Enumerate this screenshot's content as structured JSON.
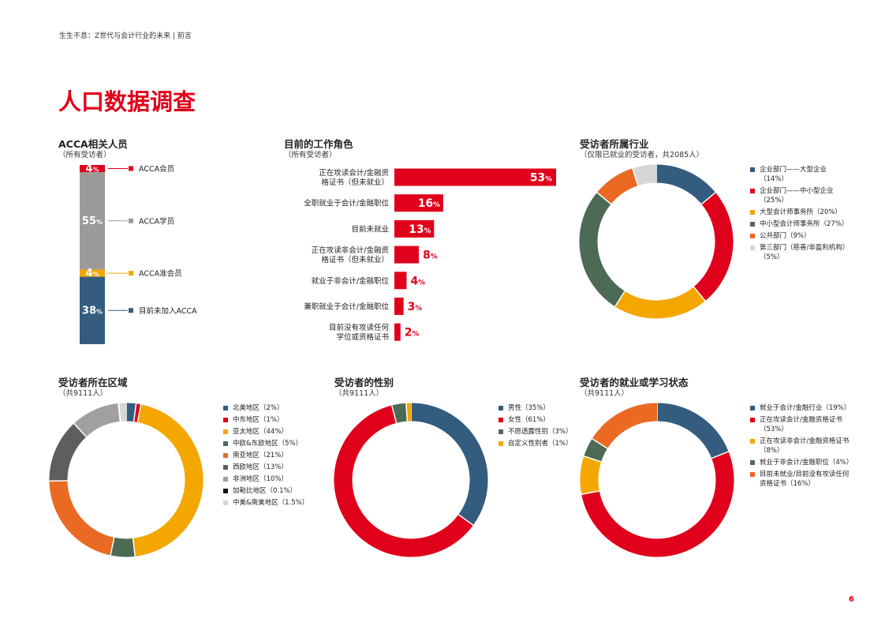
{
  "header": "生生不息：Z世代与会计行业的未来 | 前言",
  "page_title": "人口数据调查",
  "page_number": "6",
  "chart_data": [
    {
      "id": "acca",
      "type": "bar",
      "stacked": true,
      "title": "ACCA相关人员",
      "subtitle": "（所有受访者）",
      "categories": [
        "ACCA会员",
        "ACCA学员",
        "ACCA准会员",
        "目前未加入ACCA"
      ],
      "values": [
        4,
        55,
        4,
        38
      ],
      "value_labels": [
        "4",
        "55",
        "4",
        "38"
      ],
      "unit": "%",
      "colors": [
        "#e0001b",
        "#9d9b99",
        "#f4a700",
        "#335c7e"
      ]
    },
    {
      "id": "role",
      "type": "bar",
      "orientation": "horizontal",
      "title": "目前的工作角色",
      "subtitle": "（所有受访者）",
      "categories": [
        "正在攻读会计/金融资\n格证书（但未就业）",
        "全职就业于会计/金融职位",
        "目前未就业",
        "正在攻读非会计/金融资\n格证书（但未就业）",
        "就业于非会计/金融职位",
        "兼职就业于会计/金融职位",
        "目前没有攻读任何\n学位或资格证书"
      ],
      "values": [
        53,
        16,
        13,
        8,
        4,
        3,
        2
      ],
      "value_labels": [
        "53",
        "16",
        "13",
        "8",
        "4",
        "3",
        "2"
      ],
      "unit": "%",
      "color": "#e0001b"
    },
    {
      "id": "industry",
      "type": "pie",
      "donut": true,
      "title": "受访者所属行业",
      "subtitle": "（仅限已就业的受访者，共2085人）",
      "labels": [
        "企业部门——大型企业\n（14%）",
        "企业部门——中小型企业\n（25%）",
        "大型会计师事务所（20%）",
        "中小型会计师事务所（27%）",
        "公共部门（9%）",
        "第三部门（慈善/非盈利机构）\n（5%）"
      ],
      "values": [
        14,
        25,
        20,
        27,
        9,
        5
      ],
      "colors": [
        "#335c7e",
        "#e0001b",
        "#f4a700",
        "#4d6a55",
        "#ea6a24",
        "#d6d6d6"
      ]
    },
    {
      "id": "region",
      "type": "pie",
      "donut": true,
      "title": "受访者所在区域",
      "subtitle": "（共9111人）",
      "labels": [
        "北美地区（2%）",
        "中东地区（1%）",
        "亚太地区（44%）",
        "中欧&东欧地区（5%）",
        "南亚地区（21%）",
        "西欧地区（13%）",
        "非洲地区（10%）",
        "加勒比地区（0.1%）",
        "中美&南美地区（1.5%）"
      ],
      "values": [
        2,
        1,
        44,
        5,
        21,
        13,
        10,
        0.1,
        1.5
      ],
      "colors": [
        "#335c7e",
        "#e0001b",
        "#f4a700",
        "#4d6a55",
        "#ea6a24",
        "#5e5e5e",
        "#a2a09e",
        "#111111",
        "#d6d6d6"
      ]
    },
    {
      "id": "gender",
      "type": "pie",
      "donut": true,
      "title": "受访者的性别",
      "subtitle": "（共9111人）",
      "labels": [
        "男性（35%）",
        "女性（61%）",
        "不愿透露性别（3%）",
        "自定义性别者（1%）"
      ],
      "values": [
        35,
        61,
        3,
        1
      ],
      "colors": [
        "#335c7e",
        "#e0001b",
        "#4d6a55",
        "#f4a700"
      ]
    },
    {
      "id": "status",
      "type": "pie",
      "donut": true,
      "title": "受访者的就业或学习状态",
      "subtitle": "（共9111人）",
      "labels": [
        "就业于会计/金融行业（19%）",
        "正在攻读会计/金融资格证书\n（53%）",
        "正在攻读非会计/金融资格证书\n（8%）",
        "就业于非会计/金融职位（4%）",
        "目前未就业/目前没有攻读任何\n资格证书（16%）"
      ],
      "values": [
        19,
        53,
        8,
        4,
        16
      ],
      "colors": [
        "#335c7e",
        "#e0001b",
        "#f4a700",
        "#4d6a55",
        "#ea6a24"
      ]
    }
  ]
}
